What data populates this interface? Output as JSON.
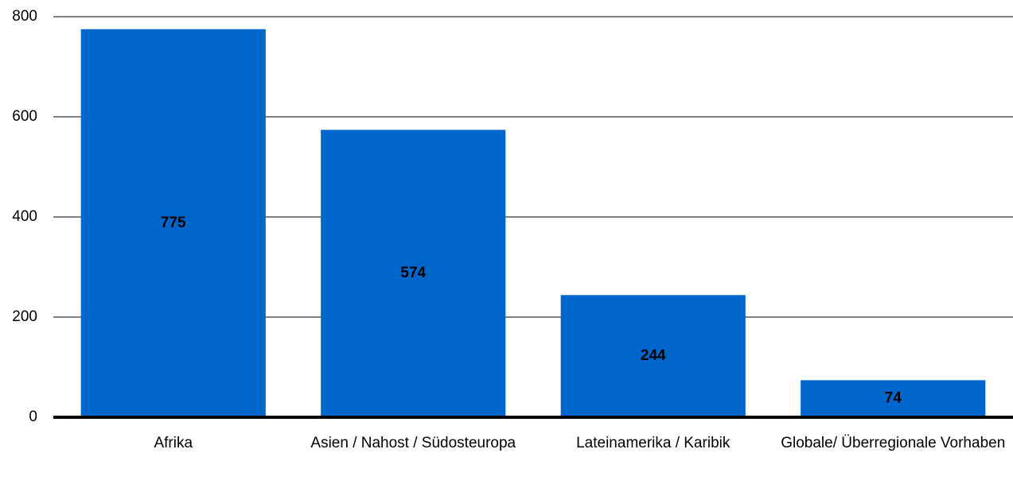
{
  "chart_data": {
    "type": "bar",
    "categories": [
      "Afrika",
      "Asien / Nahost / Südosteuropa",
      "Lateinamerika / Karibik",
      "Globale/ Überregionale Vorhaben"
    ],
    "values": [
      775,
      574,
      244,
      74
    ],
    "color": "#0066cc",
    "ylim": [
      0,
      800
    ],
    "yticks": [
      0,
      200,
      400,
      600,
      800
    ],
    "grid": true
  }
}
